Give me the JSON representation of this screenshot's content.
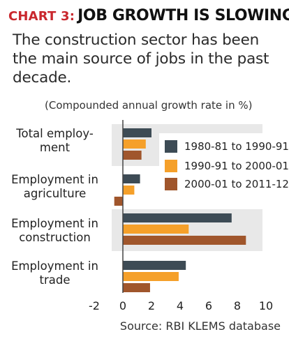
{
  "header": {
    "prefix": "CHART 3:",
    "title": "JOB GROWTH IS SLOWING",
    "subtitle": "The construction sector has been the main source of jobs in the past decade.",
    "unit_note": "(Compounded annual growth rate in %)",
    "source": "Source: RBI KLEMS database"
  },
  "chart_data": {
    "type": "bar",
    "orientation": "horizontal",
    "categories": [
      "Total employ-\nment",
      "Employment in\nagriculture",
      "Employment in\nconstruction",
      "Employment in\ntrade"
    ],
    "series": [
      {
        "name": "1980-81 to 1990-91",
        "color": "#3d4b55",
        "values": [
          2.0,
          1.2,
          7.6,
          4.4
        ]
      },
      {
        "name": "1990-91 to 2000-01",
        "color": "#f5a02a",
        "values": [
          1.6,
          0.8,
          4.6,
          3.9
        ]
      },
      {
        "name": "2000-01 to 2011-12",
        "color": "#a0562c",
        "values": [
          1.3,
          -0.6,
          8.6,
          1.9
        ]
      }
    ],
    "xlim": [
      -2,
      10
    ],
    "xticks": [
      "-2",
      "0",
      "2",
      "4",
      "6",
      "8",
      "10"
    ],
    "legend_position": "right",
    "band_color": "#e8e8e8"
  }
}
